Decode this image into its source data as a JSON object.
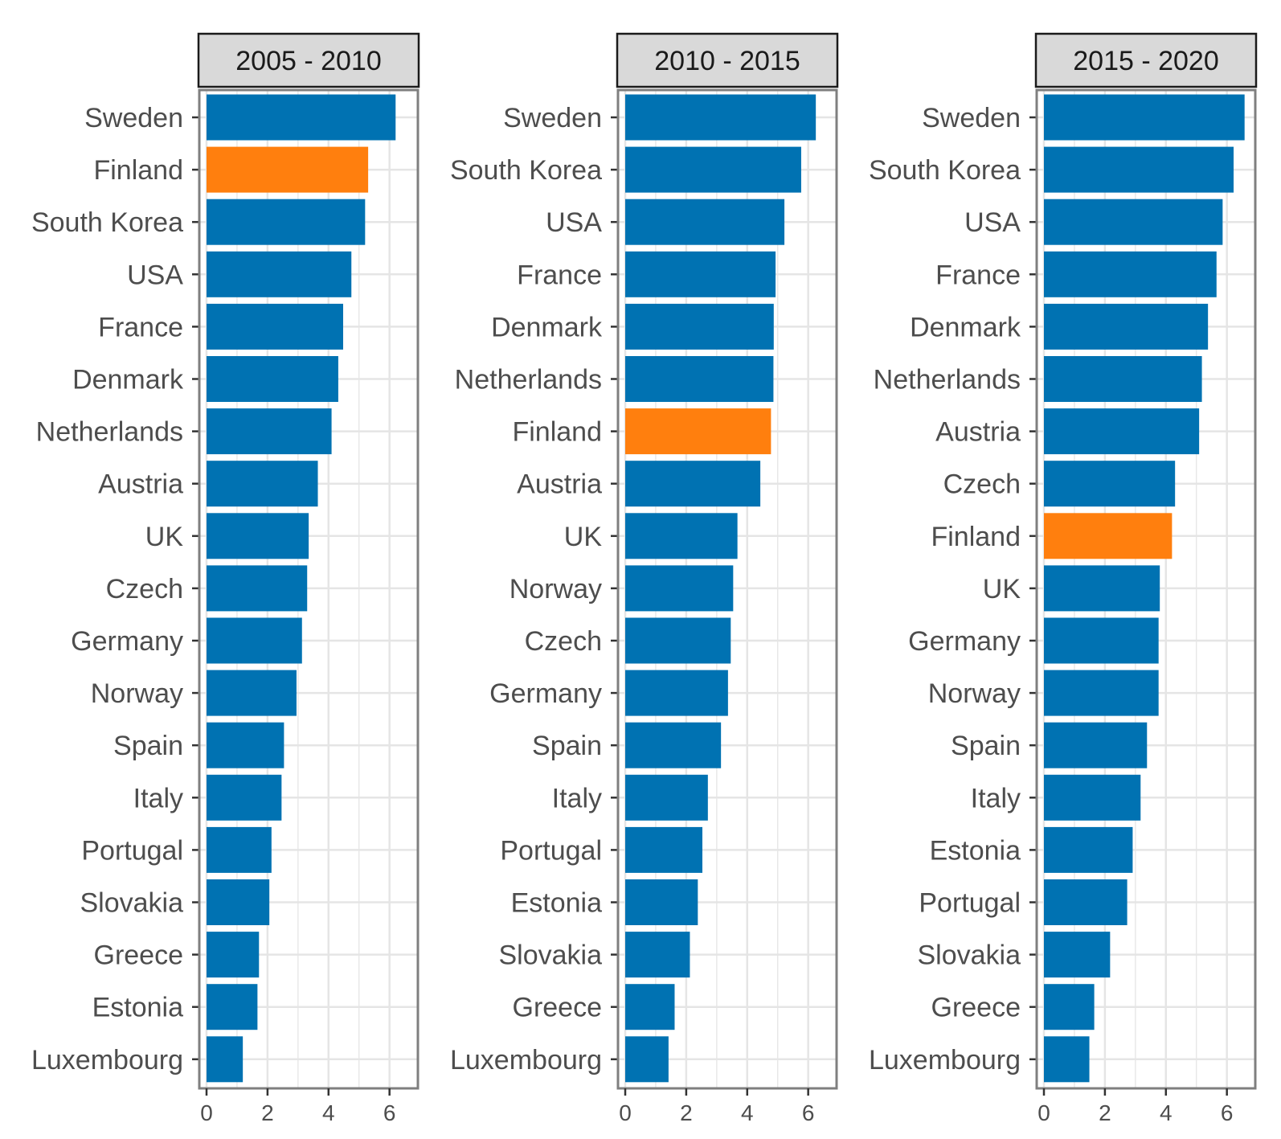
{
  "colors": {
    "bar": "#0072b2",
    "highlight": "#ff7f0e",
    "grid": "#e5e5e5",
    "panel_border": "#7f7f7f",
    "strip_fill": "#d9d9d9",
    "strip_border": "#1a1a1a",
    "tick": "#333333"
  },
  "chart_data": {
    "type": "bar",
    "orientation": "horizontal",
    "highlight_category": "Finland",
    "xlim": [
      0,
      6.6
    ],
    "x_ticks": [
      0,
      2,
      4,
      6
    ],
    "grid": true,
    "panels": [
      {
        "title": "2005 - 2010",
        "categories": [
          "Sweden",
          "Finland",
          "South Korea",
          "USA",
          "France",
          "Denmark",
          "Netherlands",
          "Austria",
          "UK",
          "Czech",
          "Germany",
          "Norway",
          "Spain",
          "Italy",
          "Portugal",
          "Slovakia",
          "Greece",
          "Estonia",
          "Luxembourg"
        ],
        "values": [
          6.2,
          5.3,
          5.2,
          4.75,
          4.48,
          4.32,
          4.1,
          3.65,
          3.35,
          3.3,
          3.13,
          2.95,
          2.54,
          2.46,
          2.13,
          2.06,
          1.72,
          1.67,
          1.19
        ]
      },
      {
        "title": "2010 - 2015",
        "categories": [
          "Sweden",
          "South Korea",
          "USA",
          "France",
          "Denmark",
          "Netherlands",
          "Finland",
          "Austria",
          "UK",
          "Norway",
          "Czech",
          "Germany",
          "Spain",
          "Italy",
          "Portugal",
          "Estonia",
          "Slovakia",
          "Greece",
          "Luxembourg"
        ],
        "values": [
          6.25,
          5.77,
          5.22,
          4.93,
          4.87,
          4.86,
          4.78,
          4.43,
          3.68,
          3.54,
          3.46,
          3.37,
          3.14,
          2.71,
          2.53,
          2.38,
          2.12,
          1.62,
          1.42
        ]
      },
      {
        "title": "2015 - 2020",
        "categories": [
          "Sweden",
          "South Korea",
          "USA",
          "France",
          "Denmark",
          "Netherlands",
          "Austria",
          "Czech",
          "Finland",
          "UK",
          "Germany",
          "Norway",
          "Spain",
          "Italy",
          "Estonia",
          "Portugal",
          "Slovakia",
          "Greece",
          "Luxembourg"
        ],
        "values": [
          6.58,
          6.22,
          5.86,
          5.66,
          5.38,
          5.18,
          5.09,
          4.3,
          4.2,
          3.8,
          3.76,
          3.76,
          3.38,
          3.17,
          2.91,
          2.73,
          2.17,
          1.65,
          1.49
        ]
      }
    ]
  }
}
